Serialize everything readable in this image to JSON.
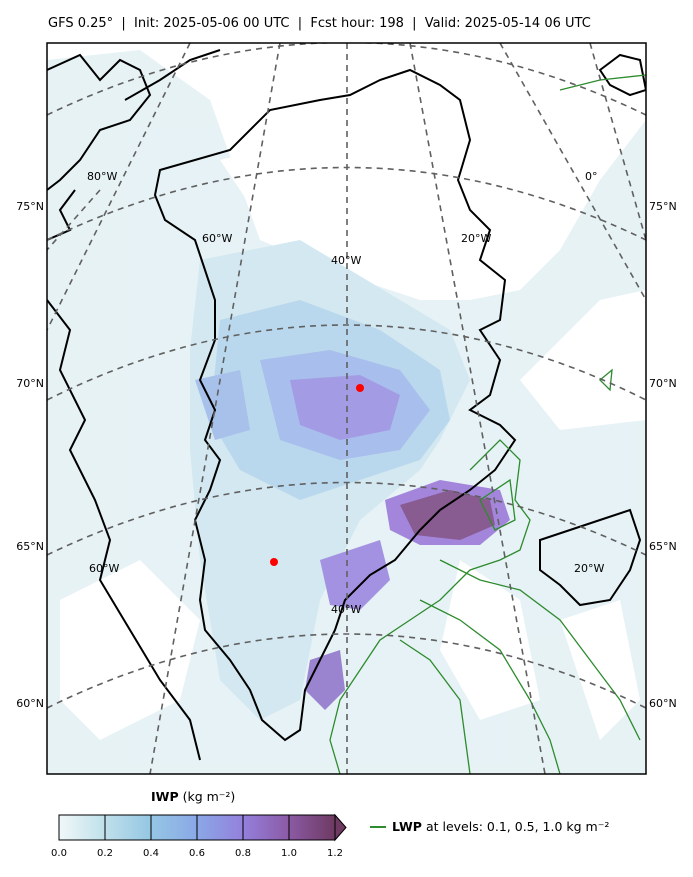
{
  "header": {
    "title": "GFS 0.25°  |  Init: 2025-05-06 00 UTC  |  Fcst hour: 198  |  Valid: 2025-05-14 06 UTC"
  },
  "map": {
    "lat_labels_left": [
      "75°N",
      "70°N",
      "65°N",
      "60°N"
    ],
    "lat_labels_right": [
      "75°N",
      "70°N",
      "65°N",
      "60°N"
    ],
    "lon_labels": [
      "80°W",
      "60°W",
      "40°W",
      "20°W",
      "0°",
      "60°W",
      "40°W",
      "20°W"
    ],
    "markers": [
      "point-north",
      "point-south"
    ],
    "colors": {
      "coast": "#000000",
      "grid": "#606060",
      "lwp_contour": "#2e8b2e",
      "marker": "#ff0000"
    }
  },
  "colorbar": {
    "title_bold": "IWP",
    "title_unit": "(kg m⁻²)",
    "ticks": [
      "0.0",
      "0.2",
      "0.4",
      "0.6",
      "0.8",
      "1.0",
      "1.2"
    ],
    "colors": [
      "#e2f0f3",
      "#a9d3e6",
      "#8cb2e6",
      "#9386e0",
      "#8e5fae",
      "#7a3f70"
    ]
  },
  "legend": {
    "label_bold": "LWP",
    "label_rest": "at levels: 0.1, 0.5, 1.0  kg m⁻²"
  }
}
